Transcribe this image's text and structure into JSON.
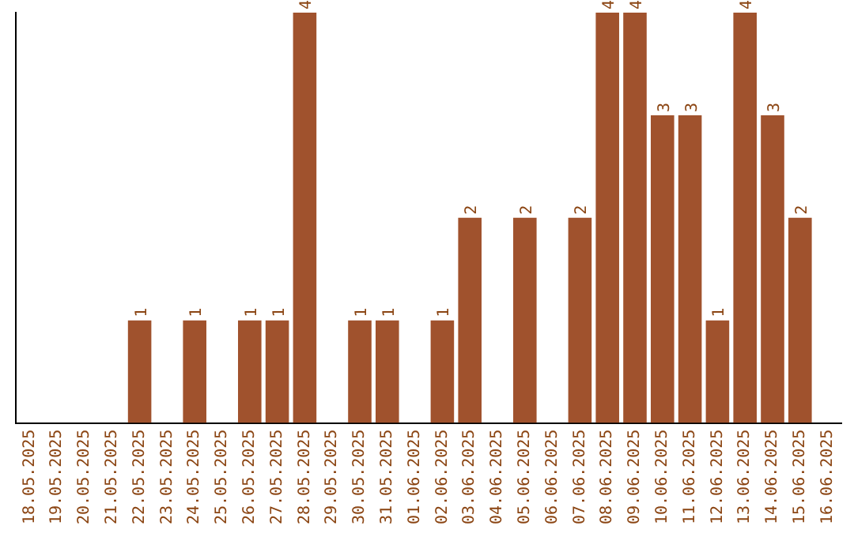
{
  "chart_data": {
    "type": "bar",
    "categories": [
      "18.05.2025",
      "19.05.2025",
      "20.05.2025",
      "21.05.2025",
      "22.05.2025",
      "23.05.2025",
      "24.05.2025",
      "25.05.2025",
      "26.05.2025",
      "27.05.2025",
      "28.05.2025",
      "29.05.2025",
      "30.05.2025",
      "31.05.2025",
      "01.06.2025",
      "02.06.2025",
      "03.06.2025",
      "04.06.2025",
      "05.06.2025",
      "06.06.2025",
      "07.06.2025",
      "08.06.2025",
      "09.06.2025",
      "10.06.2025",
      "11.06.2025",
      "12.06.2025",
      "13.06.2025",
      "14.06.2025",
      "15.06.2025",
      "16.06.2025"
    ],
    "values": [
      0,
      0,
      0,
      0,
      1,
      0,
      1,
      0,
      1,
      1,
      4,
      0,
      1,
      1,
      0,
      1,
      2,
      0,
      2,
      0,
      2,
      4,
      4,
      3,
      3,
      1,
      4,
      3,
      2,
      0
    ],
    "value_labels": [
      null,
      null,
      null,
      null,
      "1",
      null,
      "1",
      null,
      "1",
      "1",
      "4",
      null,
      "1",
      "1",
      null,
      "1",
      "2",
      null,
      "2",
      null,
      "2",
      "4",
      "4",
      "3",
      "3",
      "1",
      "4",
      "3",
      "2",
      null
    ],
    "color": "#a0522d",
    "ylim": [
      0,
      4
    ],
    "tick_labels": "x",
    "grid": false,
    "legend": false
  }
}
